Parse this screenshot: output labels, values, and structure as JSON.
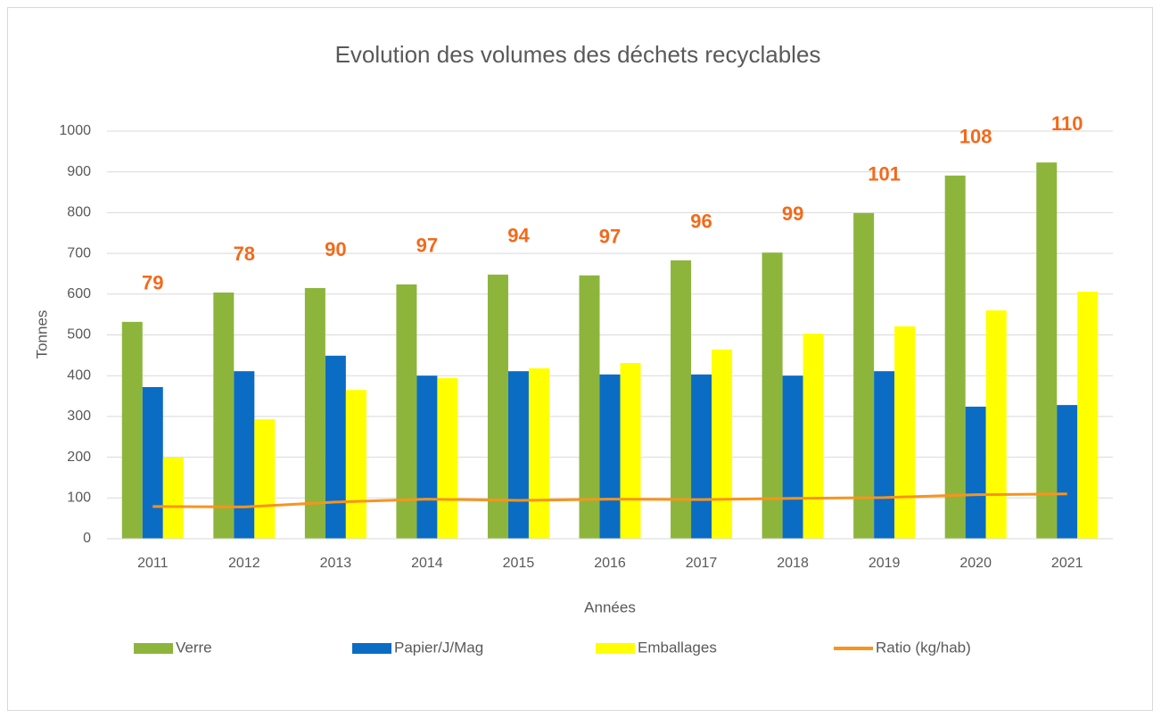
{
  "chart_data": {
    "type": "bar_line",
    "title": "Evolution des volumes des déchets recyclables",
    "x_label": "Années",
    "y_label": "Tonnes",
    "categories": [
      "2011",
      "2012",
      "2013",
      "2014",
      "2015",
      "2016",
      "2017",
      "2018",
      "2019",
      "2020",
      "2021"
    ],
    "series": [
      {
        "name": "Verre",
        "color": "#8db53c",
        "type": "bar",
        "values": [
          532,
          604,
          615,
          624,
          648,
          646,
          683,
          702,
          799,
          891,
          923
        ]
      },
      {
        "name": "Papier/J/Mag",
        "color": "#0b6cc4",
        "type": "bar",
        "values": [
          372,
          411,
          449,
          400,
          411,
          403,
          403,
          400,
          411,
          324,
          328
        ]
      },
      {
        "name": "Emballages",
        "color": "#ffff00",
        "type": "bar",
        "values": [
          199,
          293,
          365,
          394,
          418,
          431,
          464,
          503,
          521,
          560,
          606
        ]
      },
      {
        "name": "Ratio (kg/hab)",
        "color": "#f7941d",
        "type": "line",
        "label_color": "#f26a1b",
        "values": [
          79,
          78,
          90,
          97,
          94,
          97,
          96,
          99,
          101,
          108,
          110
        ]
      }
    ],
    "ylim": [
      0,
      1000
    ],
    "yticks": [
      0,
      100,
      200,
      300,
      400,
      500,
      600,
      700,
      800,
      900,
      1000
    ],
    "grid": true
  }
}
